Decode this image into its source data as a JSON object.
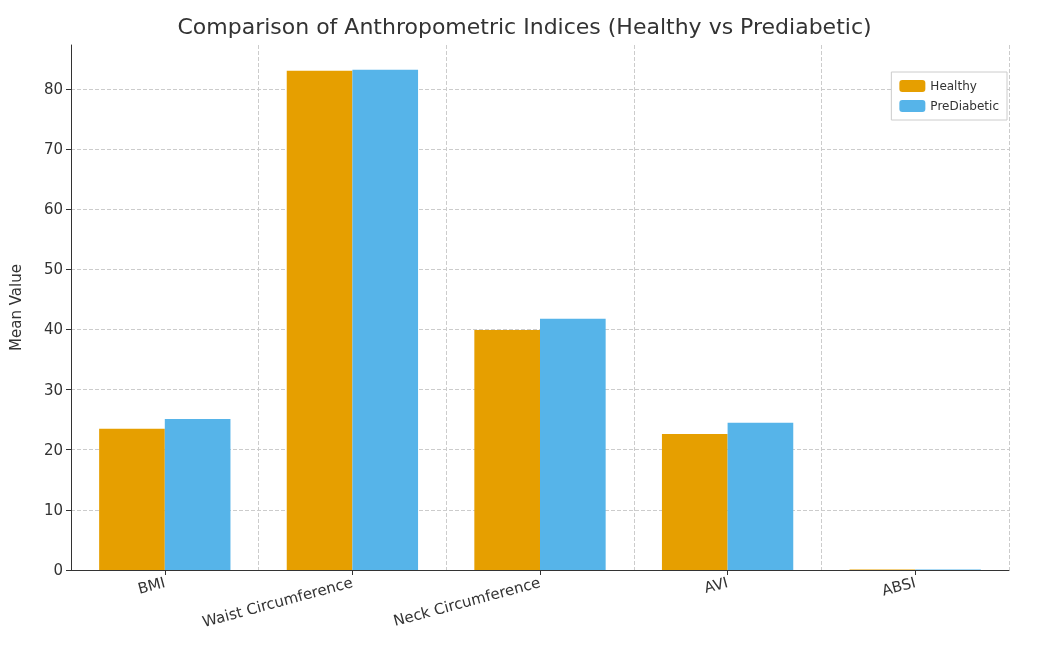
{
  "chart_data": {
    "type": "bar",
    "title": "Comparison of Anthropometric Indices (Healthy vs Prediabetic)",
    "ylabel": "Mean Value",
    "categories": [
      "BMI",
      "Waist Circumference",
      "Neck Circumference",
      "AVI",
      "ABSI"
    ],
    "series": [
      {
        "name": "Healthy",
        "color": "#e69f00",
        "values": [
          23.5,
          83.0,
          39.9,
          22.6,
          0.1
        ]
      },
      {
        "name": "PreDiabetic",
        "color": "#56b4e9",
        "values": [
          25.1,
          83.2,
          41.8,
          24.5,
          0.1
        ]
      }
    ],
    "ylim": [
      0,
      87.3
    ],
    "yticks": [
      0,
      10,
      20,
      30,
      40,
      50,
      60,
      70,
      80
    ],
    "grid": true,
    "legend": "top right"
  }
}
